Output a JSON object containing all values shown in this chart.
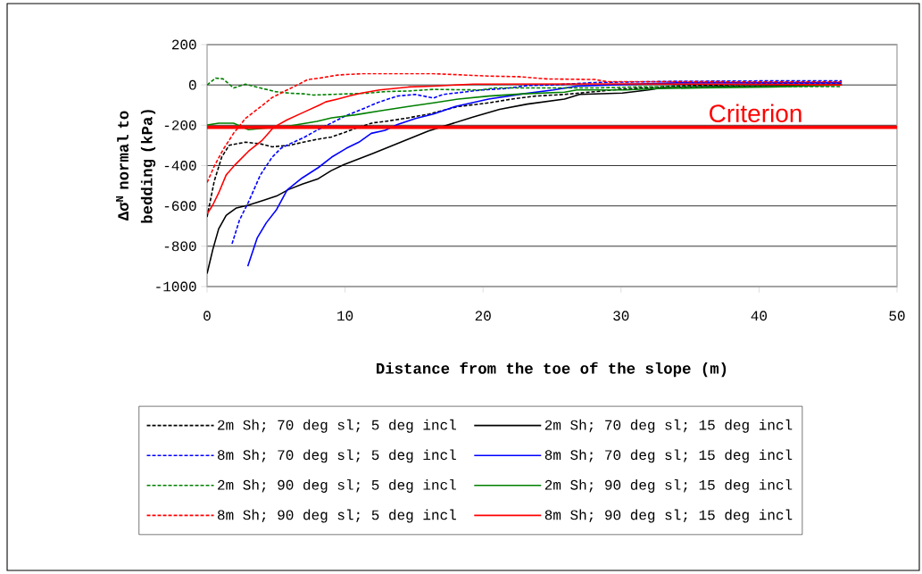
{
  "chart_data": {
    "type": "line",
    "xlabel": "Distance from the toe of the slope (m)",
    "ylabel": "Δσ$^{N}$ normal to bedding (kPa)",
    "xlim": [
      0,
      50
    ],
    "ylim": [
      -1000,
      200
    ],
    "xticks": [
      0,
      10,
      20,
      30,
      40,
      50
    ],
    "yticks": [
      -1000,
      -800,
      -600,
      -400,
      -200,
      0,
      200
    ],
    "grid": "y",
    "legend": "bottom",
    "marker": "none",
    "ref_lines": [
      {
        "axis": "y",
        "value": -210,
        "label": "Criterion",
        "color": "#ff0000"
      }
    ],
    "series": [
      {
        "name": "2m Sh; 70 deg sl; 5 deg incl",
        "color": "#000000",
        "line_style": "dashed",
        "x": [
          0,
          0.52,
          1.06,
          1.6,
          2.78,
          3.86,
          4.72,
          6.0,
          6.98,
          7.95,
          9.03,
          9.9,
          10.97,
          12.0,
          12.9,
          14.6,
          16.1,
          18.2,
          20.4,
          22.1,
          23.8,
          25.9,
          27.7,
          29.8,
          31.6,
          34,
          40,
          46
        ],
        "values": [
          -655,
          -477,
          -358,
          -299,
          -284,
          -292,
          -307,
          -299,
          -284,
          -270,
          -258,
          -237,
          -210,
          -188,
          -181,
          -163,
          -144,
          -107,
          -89,
          -70,
          -55,
          -47,
          -36,
          -22,
          -15,
          -5,
          5,
          5
        ]
      },
      {
        "name": "2m Sh; 70 deg sl; 15 deg incl",
        "color": "#000000",
        "line_style": "solid",
        "x": [
          0,
          0.41,
          0.84,
          1.38,
          2.13,
          3.0,
          4.07,
          5.04,
          5.9,
          6.9,
          8.06,
          9.0,
          9.9,
          12,
          14,
          16.04,
          19.3,
          21.2,
          23.2,
          25.9,
          27.0,
          30.1,
          32.0,
          32.9,
          36,
          40,
          46
        ],
        "values": [
          -936,
          -818,
          -714,
          -647,
          -610,
          -596,
          -573,
          -551,
          -519,
          -492,
          -465,
          -425,
          -396,
          -340,
          -285,
          -228,
          -159,
          -121,
          -95,
          -70,
          -47,
          -40,
          -25,
          -15,
          -8,
          -5,
          0
        ]
      },
      {
        "name": "8m Sh; 70 deg sl; 5 deg incl",
        "color": "#0000ff",
        "line_style": "dashed",
        "x": [
          1.81,
          2.35,
          3.0,
          3.86,
          4.72,
          5.36,
          6.0,
          6.98,
          7.95,
          9.03,
          10.1,
          11.2,
          12.5,
          13.8,
          15.1,
          16.4,
          17.1,
          18.0,
          19.9,
          21.6,
          23.2,
          25,
          28.1,
          34,
          40,
          46
        ],
        "values": [
          -788,
          -670,
          -581,
          -447,
          -358,
          -314,
          -292,
          -262,
          -225,
          -188,
          -151,
          -121,
          -84,
          -55,
          -47,
          -65,
          -47,
          -40,
          -25,
          -18,
          -3,
          0,
          12,
          18,
          20,
          20
        ]
      },
      {
        "name": "8m Sh; 70 deg sl; 15 deg incl",
        "color": "#0000ff",
        "line_style": "solid",
        "x": [
          2.95,
          3.64,
          4.29,
          5.04,
          5.8,
          6.88,
          8.06,
          9.03,
          10.1,
          11.0,
          11.9,
          12.9,
          13.8,
          15.1,
          16.4,
          18.0,
          20.4,
          22.9,
          25.1,
          26.8,
          29.4,
          34,
          40,
          46
        ],
        "values": [
          -899,
          -758,
          -684,
          -618,
          -521,
          -462,
          -410,
          -358,
          -314,
          -284,
          -240,
          -225,
          -196,
          -166,
          -144,
          -107,
          -70,
          -44,
          -25,
          -6,
          0,
          10,
          10,
          10
        ]
      },
      {
        "name": "2m Sh; 90 deg sl; 5 deg incl",
        "color": "#008000",
        "line_style": "dashed",
        "x": [
          0,
          0.62,
          1.16,
          1.92,
          2.78,
          3.86,
          4.94,
          6.0,
          6.98,
          7.74,
          9.03,
          10.3,
          11.6,
          12.9,
          14.6,
          16.4,
          19.9,
          20.8,
          24.7,
          28.1,
          31.1,
          34.5,
          40,
          46
        ],
        "values": [
          0,
          34,
          30,
          -15,
          4,
          -15,
          -33,
          -41,
          -44,
          -50,
          -47,
          -44,
          -41,
          -33,
          -30,
          -22,
          -25,
          -15,
          -15,
          -15,
          -10,
          -10,
          -8,
          -8
        ]
      },
      {
        "name": "2m Sh; 90 deg sl; 15 deg incl",
        "color": "#008000",
        "line_style": "solid",
        "x": [
          0,
          0.84,
          1.92,
          3.0,
          4.29,
          6.0,
          7.95,
          9.03,
          10.75,
          12.5,
          14.6,
          16.4,
          18.2,
          20.4,
          22.9,
          25.9,
          26.8,
          30.3,
          32.5,
          35.7,
          41,
          46
        ],
        "values": [
          -199,
          -190,
          -190,
          -222,
          null,
          -203,
          -181,
          -163,
          -148,
          -129,
          -107,
          -89,
          -70,
          -55,
          -44,
          -36,
          -25,
          -25,
          -18,
          -15,
          -10,
          0
        ]
      },
      {
        "name": "8m Sh; 90 deg sl; 5 deg incl",
        "color": "#ff0000",
        "line_style": "dashed",
        "x": [
          0,
          0.52,
          1.16,
          1.92,
          2.78,
          3.64,
          4.72,
          5.8,
          6.66,
          7.3,
          8.17,
          9.46,
          11.2,
          13.3,
          16.4,
          20.4,
          22.6,
          24.6,
          28.1,
          29.0,
          34.5,
          40,
          46
        ],
        "values": [
          -484,
          -403,
          -321,
          -240,
          -166,
          -121,
          -62,
          -25,
          4,
          27,
          34,
          49,
          56,
          56,
          56,
          44,
          41,
          30,
          27,
          16,
          16,
          15,
          15
        ]
      },
      {
        "name": "8m Sh; 90 deg sl; 15 deg incl",
        "color": "#ff0000",
        "line_style": "solid",
        "x": [
          0,
          0.41,
          0.84,
          1.38,
          2.03,
          3.0,
          3.96,
          4.83,
          5.8,
          6.98,
          8.17,
          8.6,
          9.46,
          10.3,
          11.2,
          12.5,
          14.6,
          16.4,
          19.3,
          30,
          40,
          46
        ],
        "values": [
          -640,
          -596,
          -536,
          -447,
          -396,
          -329,
          -277,
          -210,
          -173,
          -136,
          -99,
          -84,
          -70,
          -55,
          -40,
          -25,
          -10,
          -6,
          4,
          5,
          3,
          0
        ]
      }
    ]
  }
}
